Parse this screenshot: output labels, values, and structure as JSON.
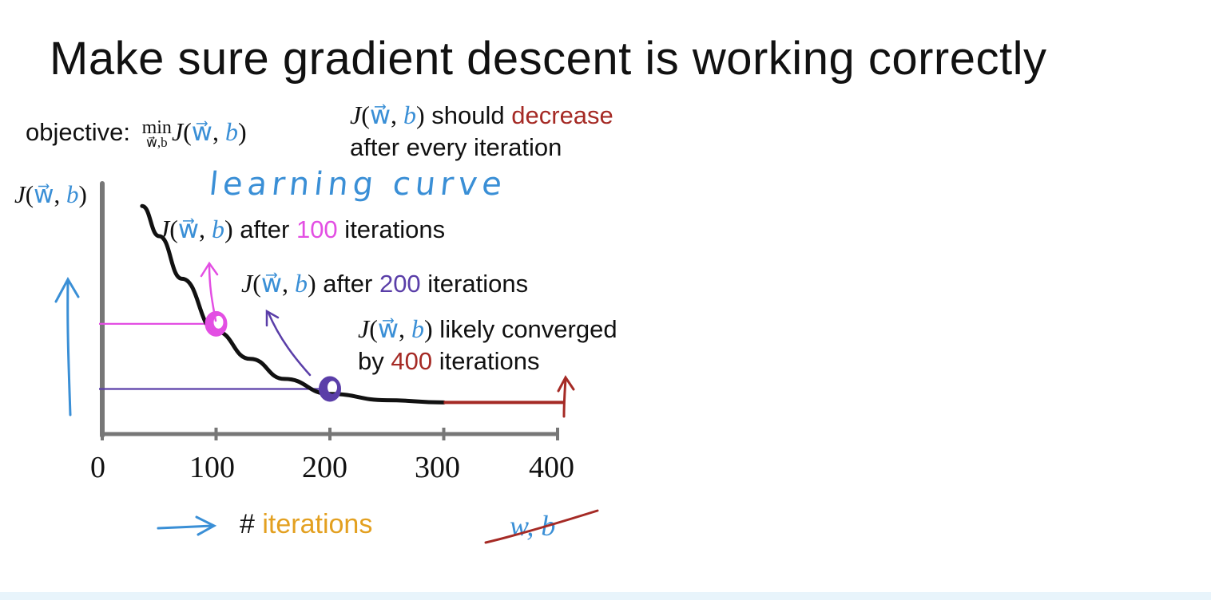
{
  "slide": {
    "title": "Make sure gradient descent is working correctly"
  },
  "objective": {
    "label": "objective:",
    "min": "min",
    "min_sub": "w⃗,b",
    "expr_J": "J",
    "expr_open": "(",
    "expr_w": "w⃗",
    "expr_comma": ",",
    "expr_b": "b",
    "expr_close": ")"
  },
  "should": {
    "J": "J",
    "open": "(",
    "w": "w⃗",
    "comma": ",",
    "b": "b",
    "close": ")",
    "text1": " should ",
    "decrease": "decrease",
    "line2": "after every iteration"
  },
  "learning_curve_label": "learning curve",
  "annotations": {
    "a100": {
      "J": "J",
      "open": "(",
      "w": "w⃗",
      "comma": ",",
      "b": "b",
      "close": ")",
      "pre": " after ",
      "num": "100",
      "post": " iterations"
    },
    "a200": {
      "J": "J",
      "open": "(",
      "w": "w⃗",
      "comma": ",",
      "b": "b",
      "close": ")",
      "pre": " after ",
      "num": "200",
      "post": " iterations"
    },
    "a400": {
      "J": "J",
      "open": "(",
      "w": "w⃗",
      "comma": ",",
      "b": "b",
      "close": ")",
      "line1": " likely converged",
      "by": "by ",
      "num": "400",
      "post": " iterations"
    }
  },
  "xaxis_note": {
    "hash": "#",
    "iterations": "iterations",
    "crossed": "w, b"
  },
  "chart_data": {
    "type": "line",
    "ylabel": {
      "J": "J",
      "open": "(",
      "w": "w⃗",
      "comma": ",",
      "b": "b",
      "close": ")"
    },
    "xlabel": "# iterations",
    "x_ticks": [
      "0",
      "100",
      "200",
      "300",
      "400"
    ],
    "xlim": [
      0,
      400
    ],
    "series": [
      {
        "x": [
          35,
          50,
          70,
          100,
          130,
          160,
          200,
          250,
          300,
          350,
          400
        ],
        "y": [
          0.91,
          0.79,
          0.62,
          0.41,
          0.3,
          0.22,
          0.16,
          0.135,
          0.126,
          0.126,
          0.126
        ]
      }
    ],
    "highlights": [
      {
        "x": 100,
        "y": 0.44
      },
      {
        "x": 200,
        "y": 0.18
      }
    ],
    "colors": {
      "curve": "#111111",
      "converged": "#a52a25",
      "pink": "#e34fe3",
      "purple": "#5a3ea8",
      "blue": "#3a8fd6",
      "axis": "#777777"
    }
  }
}
